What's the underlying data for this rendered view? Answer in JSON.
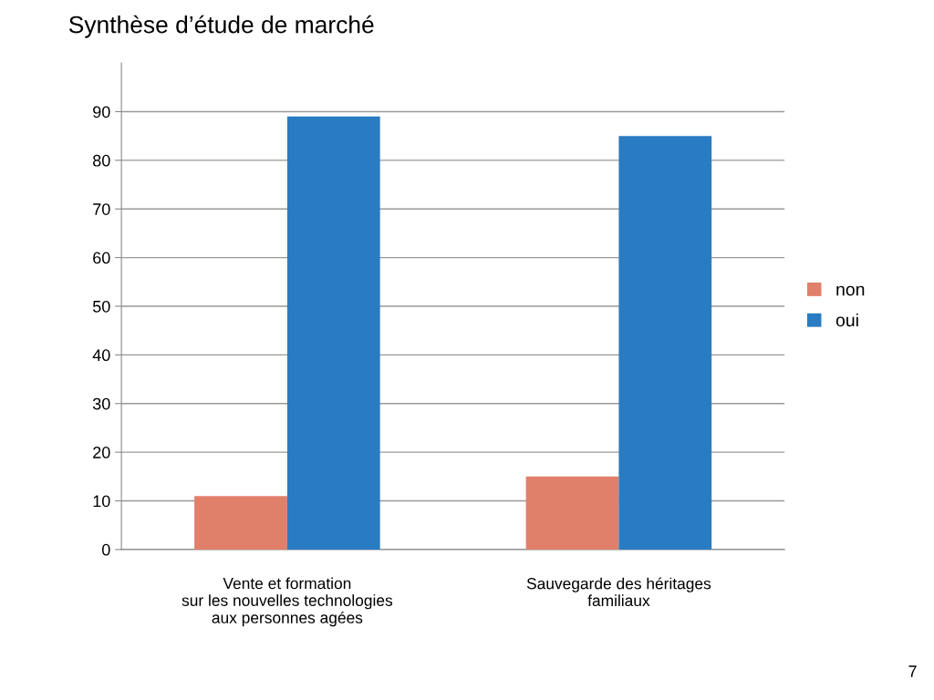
{
  "chart_data": {
    "type": "bar",
    "title": "Synthèse d’étude de marché",
    "categories": [
      "Vente et formation\nsur les nouvelles technologies\naux personnes agées",
      "Sauvegarde des héritages\nfamiliaux"
    ],
    "series": [
      {
        "name": "non",
        "color": "#e0806b",
        "values": [
          11,
          15
        ]
      },
      {
        "name": "oui",
        "color": "#2a7cc2",
        "values": [
          89,
          85
        ]
      }
    ],
    "ylim": [
      0,
      100
    ],
    "yticks": [
      0,
      10,
      20,
      30,
      40,
      50,
      60,
      70,
      80,
      90
    ],
    "grid": "y",
    "legend": "right",
    "annotations": [
      "7"
    ]
  }
}
